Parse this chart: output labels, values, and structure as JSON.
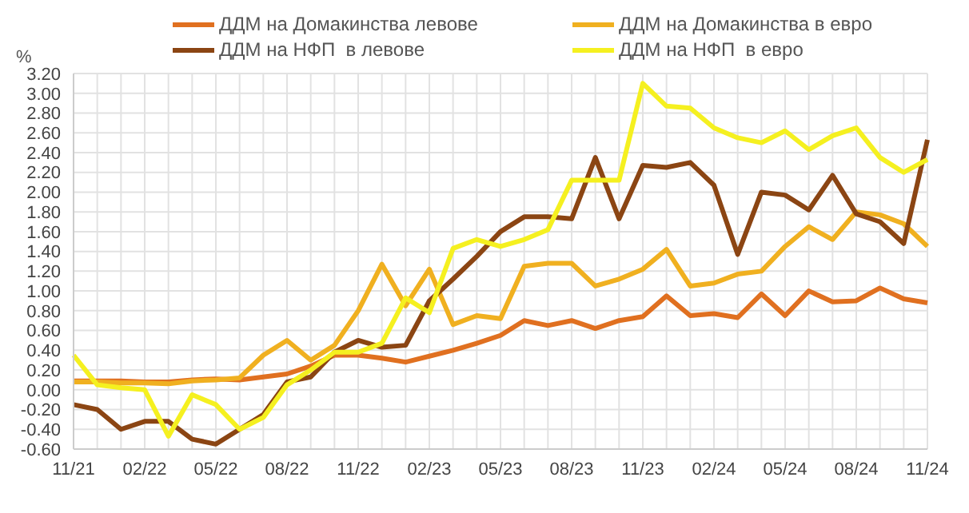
{
  "chart_data": {
    "type": "line",
    "ylabel": "%",
    "categories": [
      "11/21",
      null,
      null,
      "02/22",
      null,
      null,
      "05/22",
      null,
      null,
      "08/22",
      null,
      null,
      "11/22",
      null,
      null,
      "02/23",
      null,
      null,
      "05/23",
      null,
      null,
      "08/23",
      null,
      null,
      "11/23",
      null,
      null,
      "02/24",
      null,
      null,
      "05/24",
      null,
      null,
      "08/24",
      null,
      null,
      "11/24"
    ],
    "series": [
      {
        "name": "ДДМ на Домакинства левове",
        "color": "#e07020",
        "values": [
          0.09,
          0.09,
          0.09,
          0.08,
          0.08,
          0.1,
          0.11,
          0.1,
          0.13,
          0.16,
          0.24,
          0.35,
          0.35,
          0.32,
          0.28,
          0.34,
          0.4,
          0.47,
          0.55,
          0.7,
          0.65,
          0.7,
          0.62,
          0.7,
          0.74,
          0.95,
          0.75,
          0.77,
          0.73,
          0.97,
          0.75,
          1.0,
          0.89,
          0.9,
          1.03,
          0.92,
          0.88
        ]
      },
      {
        "name": "ДДМ на Домакинства в евро",
        "color": "#f0b020",
        "values": [
          0.08,
          0.08,
          0.07,
          0.07,
          0.06,
          0.09,
          0.1,
          0.12,
          0.35,
          0.5,
          0.3,
          0.45,
          0.8,
          1.27,
          0.85,
          1.22,
          0.66,
          0.75,
          0.72,
          1.25,
          1.28,
          1.28,
          1.05,
          1.12,
          1.22,
          1.42,
          1.05,
          1.08,
          1.17,
          1.2,
          1.45,
          1.65,
          1.52,
          1.8,
          1.77,
          1.68,
          1.45
        ]
      },
      {
        "name": "ДДМ на НФП  в левове",
        "color": "#8b4513",
        "values": [
          -0.15,
          -0.2,
          -0.4,
          -0.32,
          -0.32,
          -0.5,
          -0.55,
          -0.4,
          -0.25,
          0.08,
          0.13,
          0.38,
          0.5,
          0.43,
          0.45,
          0.9,
          1.12,
          1.35,
          1.6,
          1.75,
          1.75,
          1.73,
          2.35,
          1.73,
          2.27,
          2.25,
          2.3,
          2.07,
          1.37,
          2.0,
          1.97,
          1.82,
          2.17,
          1.78,
          1.7,
          1.48,
          2.53
        ]
      },
      {
        "name": "ДДМ на НФП  в евро",
        "color": "#f5f020",
        "values": [
          0.35,
          0.05,
          0.02,
          0.0,
          -0.47,
          -0.05,
          -0.15,
          -0.4,
          -0.28,
          0.05,
          0.2,
          0.38,
          0.38,
          0.47,
          0.93,
          0.78,
          1.43,
          1.52,
          1.45,
          1.52,
          1.62,
          2.12,
          2.12,
          2.12,
          3.1,
          2.87,
          2.85,
          2.65,
          2.55,
          2.5,
          2.62,
          2.43,
          2.57,
          2.65,
          2.35,
          2.2,
          2.33
        ]
      }
    ],
    "ylim": [
      -0.6,
      3.2
    ],
    "yticks": [
      {
        "value": -0.6,
        "label": "-0.60"
      },
      {
        "value": -0.4,
        "label": "-0.40"
      },
      {
        "value": -0.2,
        "label": "-0.20"
      },
      {
        "value": 0,
        "label": "0.00"
      },
      {
        "value": 0.2,
        "label": "0.20"
      },
      {
        "value": 0.4,
        "label": "0.40"
      },
      {
        "value": 0.6,
        "label": "0.60"
      },
      {
        "value": 0.8,
        "label": "0.80"
      },
      {
        "value": 1,
        "label": "1.00"
      },
      {
        "value": 1.2,
        "label": "1.20"
      },
      {
        "value": 1.4,
        "label": "1.40"
      },
      {
        "value": 1.6,
        "label": "1.60"
      },
      {
        "value": 1.8,
        "label": "1.80"
      },
      {
        "value": 2,
        "label": "2.00"
      },
      {
        "value": 2.2,
        "label": "2.20"
      },
      {
        "value": 2.4,
        "label": "2.40"
      },
      {
        "value": 2.6,
        "label": "2.60"
      },
      {
        "value": 2.8,
        "label": "2.80"
      },
      {
        "value": 3,
        "label": "3.00"
      },
      {
        "value": 3.2,
        "label": "3.20"
      }
    ],
    "grid": true,
    "legend": "top",
    "marker": "none",
    "line_style": "solid"
  }
}
